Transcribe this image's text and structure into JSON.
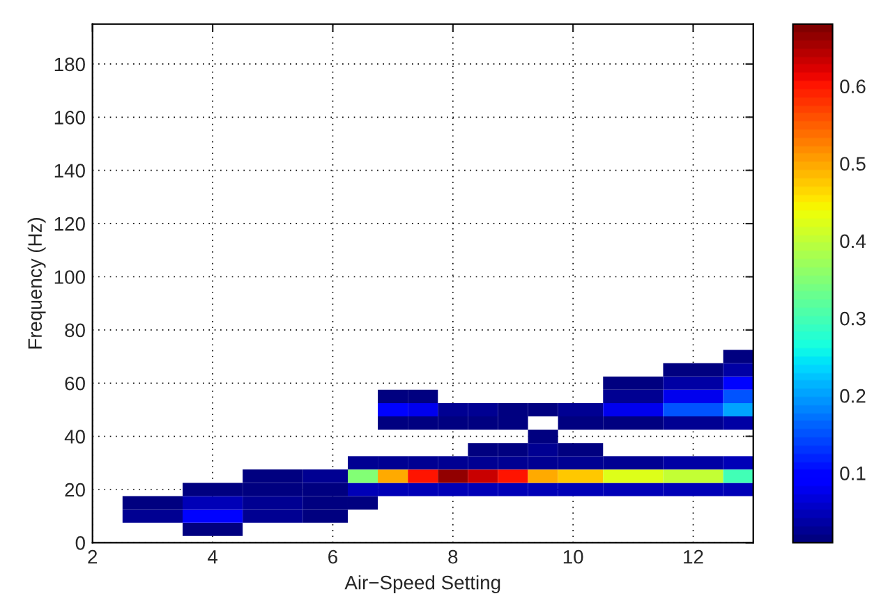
{
  "chart_data": {
    "type": "heatmap",
    "xlabel": "Air−Speed Setting",
    "ylabel": "Frequency (Hz)",
    "x": [
      2,
      3,
      4,
      5,
      6,
      6.5,
      7,
      7.5,
      8,
      8.5,
      9,
      9.5,
      10,
      11,
      12,
      13
    ],
    "y": [
      5,
      10,
      15,
      20,
      25,
      30,
      35,
      40,
      45,
      50,
      55,
      60,
      65,
      70
    ],
    "cells": [
      [
        null,
        null,
        0.01,
        null,
        null,
        null,
        null,
        null,
        null,
        null,
        null,
        null,
        null,
        null,
        null,
        null
      ],
      [
        null,
        0.03,
        0.1,
        0.03,
        0.01,
        null,
        null,
        null,
        null,
        null,
        null,
        null,
        null,
        null,
        null,
        null
      ],
      [
        null,
        0.01,
        0.05,
        0.03,
        0.02,
        0.01,
        null,
        null,
        null,
        null,
        null,
        null,
        null,
        null,
        null,
        null
      ],
      [
        null,
        null,
        0.01,
        0.02,
        0.02,
        0.05,
        0.05,
        0.05,
        0.05,
        0.05,
        0.05,
        0.05,
        0.05,
        0.05,
        0.05,
        0.05
      ],
      [
        null,
        null,
        null,
        0.01,
        0.03,
        0.35,
        0.5,
        0.6,
        0.66,
        0.63,
        0.6,
        0.5,
        0.48,
        0.42,
        0.4,
        0.3
      ],
      [
        null,
        null,
        null,
        null,
        null,
        0.03,
        0.03,
        0.03,
        0.03,
        0.03,
        0.03,
        0.03,
        0.03,
        0.03,
        0.04,
        0.05
      ],
      [
        null,
        null,
        null,
        null,
        null,
        null,
        null,
        null,
        null,
        0.01,
        0.01,
        0.03,
        0.01,
        null,
        null,
        null
      ],
      [
        null,
        null,
        null,
        null,
        null,
        null,
        null,
        null,
        null,
        null,
        null,
        0.01,
        null,
        null,
        null,
        null
      ],
      [
        null,
        null,
        null,
        null,
        null,
        null,
        0.02,
        0.01,
        0.01,
        0.01,
        0.01,
        null,
        0.01,
        0.02,
        0.03,
        0.04
      ],
      [
        null,
        null,
        null,
        null,
        null,
        null,
        0.1,
        0.08,
        0.03,
        0.03,
        0.02,
        0.01,
        0.03,
        0.08,
        0.15,
        0.2
      ],
      [
        null,
        null,
        null,
        null,
        null,
        null,
        0.02,
        0.01,
        null,
        null,
        null,
        null,
        null,
        0.03,
        0.08,
        0.15
      ],
      [
        null,
        null,
        null,
        null,
        null,
        null,
        null,
        null,
        null,
        null,
        null,
        null,
        null,
        0.01,
        0.04,
        0.1
      ],
      [
        null,
        null,
        null,
        null,
        null,
        null,
        null,
        null,
        null,
        null,
        null,
        null,
        null,
        null,
        0.01,
        0.04
      ],
      [
        null,
        null,
        null,
        null,
        null,
        null,
        null,
        null,
        null,
        null,
        null,
        null,
        null,
        null,
        null,
        0.02
      ]
    ],
    "clim": [
      0.01,
      0.68
    ],
    "cticks": [
      0.1,
      0.2,
      0.3,
      0.4,
      0.5,
      0.6
    ],
    "xlim": [
      2,
      13
    ],
    "xticks": [
      2,
      4,
      6,
      8,
      10,
      12
    ],
    "ylim": [
      0,
      195
    ],
    "yticks": [
      0,
      20,
      40,
      60,
      80,
      100,
      120,
      140,
      160,
      180
    ],
    "grid": true
  }
}
